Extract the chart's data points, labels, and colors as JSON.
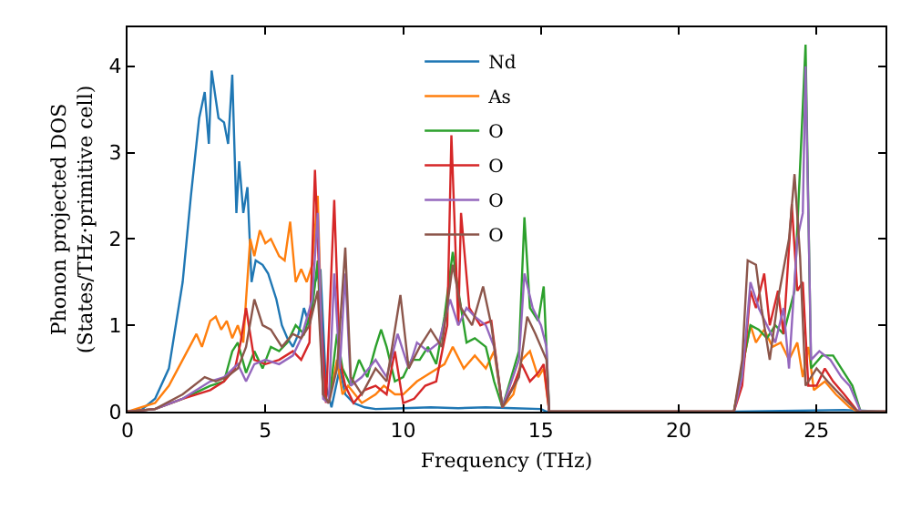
{
  "chart_data": {
    "type": "line",
    "xlabel": "Frequency (THz)",
    "ylabel": "Phonon projected DOS\n(States/THz·primitive cell)",
    "xlim": [
      0,
      27.5
    ],
    "ylim": [
      0,
      4.45
    ],
    "xticks": [
      0,
      5,
      10,
      15,
      20,
      25
    ],
    "yticks": [
      0,
      1,
      2,
      3,
      4
    ],
    "grid": false,
    "legend": "top",
    "marker": "none",
    "line_style": "solid",
    "series": [
      {
        "name": "Nd",
        "color": "#1f77b4",
        "x": [
          0,
          0.5,
          1,
          1.5,
          1.7,
          2,
          2.3,
          2.6,
          2.8,
          2.95,
          3.05,
          3.3,
          3.5,
          3.65,
          3.8,
          3.95,
          4.05,
          4.2,
          4.35,
          4.5,
          4.65,
          4.9,
          5.1,
          5.4,
          5.6,
          5.8,
          6,
          6.2,
          6.4,
          6.6,
          6.8,
          7,
          7.2,
          7.4,
          7.7,
          7.9,
          8.2,
          8.6,
          9,
          10,
          11,
          12,
          13,
          14,
          15,
          15.2,
          22,
          26,
          27.5
        ],
        "values": [
          0,
          0.02,
          0.15,
          0.5,
          0.9,
          1.5,
          2.5,
          3.4,
          3.7,
          3.1,
          3.95,
          3.4,
          3.35,
          3.1,
          3.9,
          2.3,
          2.9,
          2.3,
          2.6,
          1.5,
          1.75,
          1.7,
          1.6,
          1.3,
          1,
          0.85,
          0.75,
          0.9,
          1.2,
          1,
          1.5,
          1.65,
          0.3,
          0.05,
          0.5,
          0.2,
          0.1,
          0.05,
          0.03,
          0.04,
          0.05,
          0.04,
          0.05,
          0.04,
          0.03,
          0,
          0,
          0.02,
          0
        ]
      },
      {
        "name": "As",
        "color": "#ff7f0e",
        "x": [
          0,
          1,
          1.5,
          2,
          2.5,
          2.7,
          3,
          3.2,
          3.4,
          3.6,
          3.8,
          4,
          4.2,
          4.3,
          4.45,
          4.6,
          4.8,
          5,
          5.2,
          5.5,
          5.7,
          5.9,
          6.1,
          6.3,
          6.5,
          6.7,
          6.9,
          7.1,
          7.3,
          7.6,
          7.8,
          8,
          8.5,
          9,
          9.3,
          9.7,
          10,
          10.5,
          11,
          11.5,
          11.8,
          12.2,
          12.6,
          13,
          13.3,
          13.6,
          14,
          14.3,
          14.6,
          14.9,
          15.1,
          15.3,
          22,
          22.3,
          22.6,
          22.8,
          23.1,
          23.4,
          23.7,
          24,
          24.3,
          24.5,
          24.7,
          24.9,
          25.3,
          25.7,
          26.2,
          26.5,
          27.5
        ],
        "values": [
          0,
          0.1,
          0.3,
          0.6,
          0.9,
          0.75,
          1.05,
          1.1,
          0.95,
          1.05,
          0.85,
          1,
          0.8,
          1.3,
          2,
          1.8,
          2.1,
          1.95,
          2,
          1.8,
          1.75,
          2.2,
          1.5,
          1.65,
          1.5,
          1.7,
          2.5,
          0.2,
          0.1,
          0.6,
          0.2,
          0.3,
          0.1,
          0.2,
          0.3,
          0.2,
          0.2,
          0.35,
          0.45,
          0.55,
          0.75,
          0.5,
          0.65,
          0.5,
          0.7,
          0.05,
          0.2,
          0.6,
          0.7,
          0.4,
          0.5,
          0,
          0,
          0.5,
          1,
          0.8,
          0.95,
          0.75,
          0.8,
          0.6,
          0.8,
          0.4,
          0.75,
          0.25,
          0.35,
          0.2,
          0.05,
          0,
          0
        ]
      },
      {
        "name": "O",
        "color": "#2ca02c",
        "x": [
          0,
          1,
          2,
          3,
          3.5,
          3.8,
          4,
          4.3,
          4.6,
          4.9,
          5.2,
          5.5,
          5.8,
          6.1,
          6.4,
          6.7,
          6.9,
          7.1,
          7.3,
          7.6,
          7.8,
          8.1,
          8.4,
          8.7,
          9,
          9.2,
          9.4,
          9.7,
          10,
          10.3,
          10.6,
          10.9,
          11.2,
          11.5,
          11.8,
          12,
          12.3,
          12.6,
          13,
          13.3,
          13.6,
          14.2,
          14.4,
          14.6,
          14.9,
          15.1,
          15.3,
          22,
          22.3,
          22.6,
          22.9,
          23.2,
          23.5,
          23.8,
          24.2,
          24.6,
          24.8,
          25.2,
          25.6,
          26,
          26.3,
          26.6,
          27.5
        ],
        "values": [
          0,
          0.03,
          0.15,
          0.3,
          0.35,
          0.7,
          0.8,
          0.45,
          0.7,
          0.5,
          0.75,
          0.7,
          0.8,
          1,
          0.9,
          1.2,
          1.75,
          0.2,
          0.1,
          0.9,
          0.5,
          0.3,
          0.6,
          0.4,
          0.75,
          0.95,
          0.75,
          0.35,
          0.4,
          0.6,
          0.6,
          0.75,
          0.55,
          1.1,
          1.85,
          1.4,
          0.8,
          0.85,
          0.75,
          0.35,
          0.05,
          0.7,
          2.25,
          1.2,
          1.05,
          1.45,
          0,
          0,
          0.5,
          1,
          0.95,
          0.85,
          1,
          0.9,
          1.4,
          4.25,
          0.5,
          0.65,
          0.65,
          0.45,
          0.3,
          0,
          0
        ]
      },
      {
        "name": "O",
        "color": "#d62728",
        "x": [
          0,
          1,
          2,
          2.5,
          3,
          3.5,
          3.9,
          4.1,
          4.3,
          4.6,
          5,
          5.5,
          6,
          6.3,
          6.6,
          6.8,
          7,
          7.2,
          7.5,
          7.7,
          7.9,
          8.2,
          8.6,
          9,
          9.4,
          9.7,
          10,
          10.4,
          10.8,
          11.2,
          11.6,
          11.75,
          12,
          12.1,
          12.4,
          12.8,
          13.2,
          13.6,
          14,
          14.3,
          14.6,
          14.9,
          15.1,
          15.3,
          22,
          22.3,
          22.6,
          22.8,
          23.1,
          23.3,
          23.6,
          23.8,
          24.1,
          24.3,
          24.5,
          24.7,
          25,
          25.3,
          25.6,
          26,
          26.5,
          27.5
        ],
        "values": [
          0,
          0.03,
          0.15,
          0.2,
          0.25,
          0.35,
          0.5,
          0.8,
          1.2,
          0.6,
          0.55,
          0.6,
          0.7,
          0.6,
          0.8,
          2.8,
          1.2,
          0.1,
          2.45,
          0.6,
          0.3,
          0.1,
          0.25,
          0.3,
          0.2,
          0.7,
          0.1,
          0.15,
          0.3,
          0.35,
          1,
          3.2,
          1,
          2.3,
          1.2,
          1,
          1.05,
          0.05,
          0.3,
          0.55,
          0.35,
          0.45,
          0.55,
          0,
          0,
          0.3,
          1.4,
          1.2,
          1.6,
          1,
          1.4,
          0.9,
          2.4,
          1.4,
          1.5,
          0.3,
          0.3,
          0.5,
          0.35,
          0.2,
          0,
          0
        ]
      },
      {
        "name": "O",
        "color": "#9467bd",
        "x": [
          0,
          1,
          2,
          3,
          3.5,
          4,
          4.3,
          4.6,
          5,
          5.5,
          6,
          6.3,
          6.7,
          6.9,
          7.1,
          7.3,
          7.5,
          7.7,
          7.9,
          8.1,
          8.5,
          9,
          9.4,
          9.8,
          10.2,
          10.5,
          10.9,
          11.3,
          11.7,
          12,
          12.3,
          12.6,
          13,
          13.3,
          13.6,
          14.2,
          14.4,
          14.7,
          15,
          15.2,
          15.3,
          22,
          22.3,
          22.6,
          22.9,
          23.2,
          23.5,
          23.8,
          24,
          24.3,
          24.5,
          24.6,
          24.8,
          25.1,
          25.5,
          25.9,
          26.2,
          26.6,
          27.5
        ],
        "values": [
          0,
          0.03,
          0.15,
          0.35,
          0.4,
          0.55,
          0.35,
          0.55,
          0.6,
          0.55,
          0.65,
          0.85,
          1.3,
          2.3,
          0.15,
          0.1,
          1.6,
          0.5,
          1.6,
          0.3,
          0.4,
          0.6,
          0.4,
          0.9,
          0.5,
          0.8,
          0.7,
          0.8,
          1.3,
          1,
          1.2,
          1.1,
          1,
          0.75,
          0.05,
          0.6,
          1.6,
          1.2,
          1,
          0.75,
          0,
          0,
          0.4,
          1.5,
          1.2,
          1,
          0.8,
          1.2,
          0.5,
          2,
          2.3,
          4,
          0.6,
          0.7,
          0.6,
          0.4,
          0.3,
          0,
          0
        ]
      },
      {
        "name": "O",
        "color": "#8c564b",
        "x": [
          0,
          1,
          2,
          2.8,
          3.2,
          3.6,
          4,
          4.3,
          4.6,
          4.9,
          5.2,
          5.6,
          6,
          6.3,
          6.6,
          6.9,
          7.1,
          7.3,
          7.6,
          7.9,
          8.1,
          8.5,
          9,
          9.4,
          9.9,
          10.2,
          10.6,
          11,
          11.4,
          11.8,
          12.1,
          12.5,
          12.9,
          13.2,
          13.6,
          14.2,
          14.5,
          14.8,
          15,
          15.2,
          15.3,
          22,
          22.3,
          22.5,
          22.8,
          23,
          23.3,
          23.6,
          24,
          24.2,
          24.4,
          24.6,
          25,
          25.4,
          26,
          26.5,
          27.5
        ],
        "values": [
          0,
          0.03,
          0.2,
          0.4,
          0.35,
          0.4,
          0.5,
          0.75,
          1.3,
          1,
          0.95,
          0.75,
          0.9,
          0.85,
          1,
          1.4,
          0.2,
          0.1,
          0.5,
          1.9,
          0.4,
          0.2,
          0.5,
          0.35,
          1.35,
          0.5,
          0.75,
          0.95,
          0.75,
          1.7,
          1.2,
          1,
          1.45,
          1,
          0.05,
          0.4,
          1.1,
          0.9,
          0.75,
          0.6,
          0,
          0,
          0.6,
          1.75,
          1.7,
          1.2,
          0.6,
          1.3,
          2,
          2.75,
          1.8,
          0.3,
          0.5,
          0.35,
          0.15,
          0,
          0
        ]
      }
    ]
  }
}
